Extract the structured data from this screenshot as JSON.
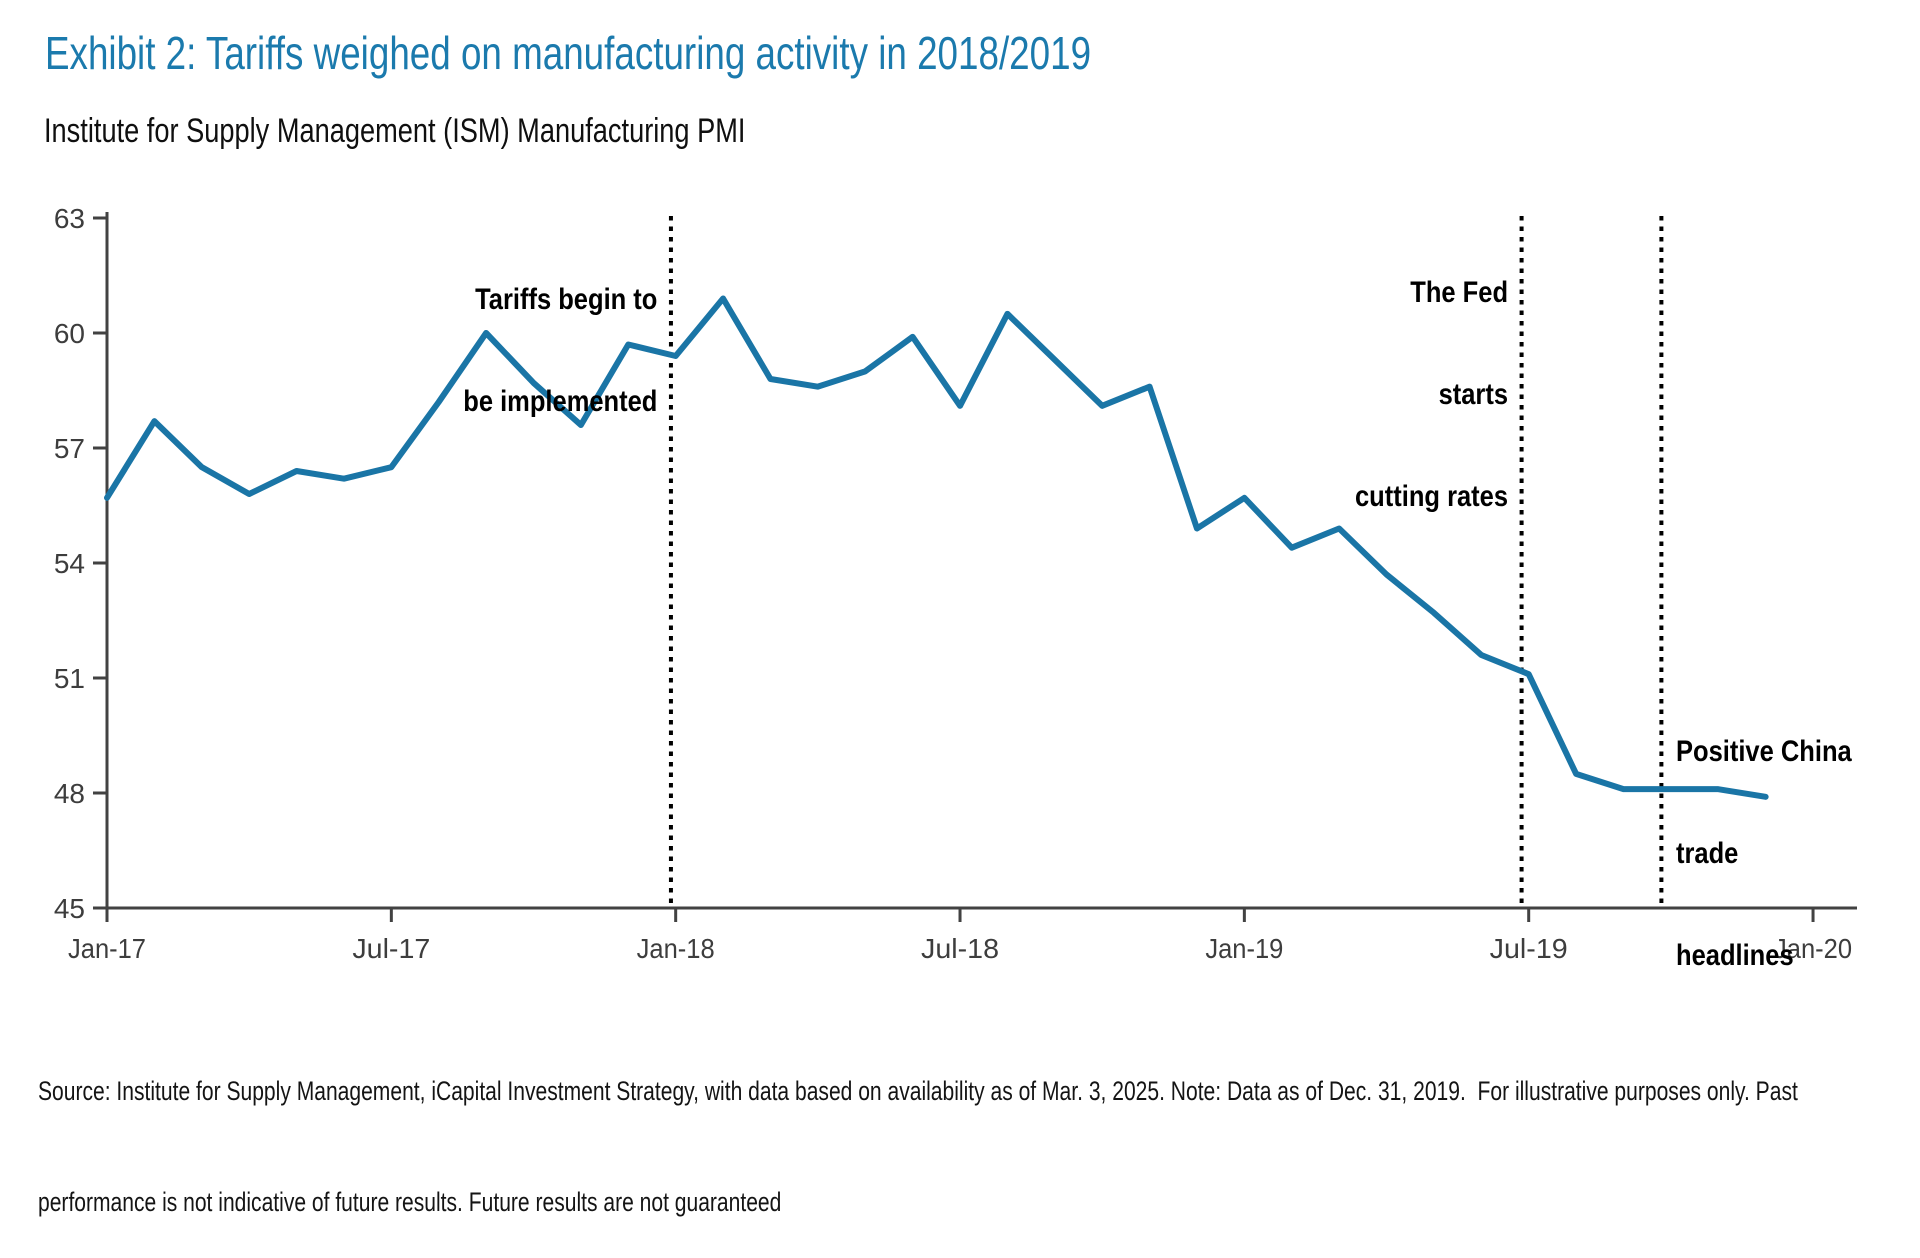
{
  "chart_data": {
    "type": "line",
    "title": "Exhibit 2: Tariffs weighed on manufacturing activity in 2018/2019",
    "subtitle": "Institute for Supply Management (ISM) Manufacturing PMI",
    "x": [
      "Jan-17",
      "Feb-17",
      "Mar-17",
      "Apr-17",
      "May-17",
      "Jun-17",
      "Jul-17",
      "Aug-17",
      "Sep-17",
      "Oct-17",
      "Nov-17",
      "Dec-17",
      "Jan-18",
      "Feb-18",
      "Mar-18",
      "Apr-18",
      "May-18",
      "Jun-18",
      "Jul-18",
      "Aug-18",
      "Sep-18",
      "Oct-18",
      "Nov-18",
      "Dec-18",
      "Jan-19",
      "Feb-19",
      "Mar-19",
      "Apr-19",
      "May-19",
      "Jun-19",
      "Jul-19",
      "Aug-19",
      "Sep-19",
      "Oct-19",
      "Nov-19",
      "Dec-19"
    ],
    "values": [
      55.7,
      57.7,
      56.5,
      55.8,
      56.4,
      56.2,
      56.5,
      58.2,
      60.0,
      58.7,
      57.6,
      59.7,
      59.4,
      60.9,
      58.8,
      58.6,
      59.0,
      59.9,
      58.1,
      60.5,
      59.3,
      58.1,
      58.6,
      54.9,
      55.7,
      54.4,
      54.9,
      53.7,
      52.7,
      51.6,
      51.1,
      48.5,
      48.1,
      48.1,
      48.1,
      47.9
    ],
    "ylim": [
      45,
      63
    ],
    "yticks": [
      63,
      60,
      57,
      54,
      51,
      48,
      45
    ],
    "xticks": [
      {
        "label": "Jan-17",
        "month": 0
      },
      {
        "label": "Jul-17",
        "month": 6
      },
      {
        "label": "Jan-18",
        "month": 12
      },
      {
        "label": "Jul-18",
        "month": 18
      },
      {
        "label": "Jan-19",
        "month": 24
      },
      {
        "label": "Jul-19",
        "month": 30
      },
      {
        "label": "Jan-20",
        "month": 36
      }
    ],
    "grid": false,
    "legend": "none",
    "line_color": "#1a75a6",
    "events": [
      {
        "name": "tariffs",
        "lines": [
          "Tariffs begin to",
          "be implemented"
        ],
        "month": 11.9,
        "label_side": "left"
      },
      {
        "name": "fed-rate-cuts",
        "lines": [
          "The Fed",
          "starts",
          "cutting rates"
        ],
        "month": 29.85,
        "label_side": "left"
      },
      {
        "name": "china-trade",
        "lines": [
          "Positive China",
          "trade",
          "headlines"
        ],
        "month": 32.8,
        "label_side": "right"
      }
    ]
  },
  "footer": {
    "source_lines": [
      "Source: Institute for Supply Management, iCapital Investment Strategy, with data based on availability as of Mar. 3, 2025. Note: Data as of Dec. 31, 2019.  For illustrative purposes only. Past",
      "performance is not indicative of future results. Future results are not guaranteed"
    ]
  },
  "colors": {
    "title_blue": "#1b7aad",
    "line_blue": "#1a75a6",
    "axis_gray": "#424242"
  }
}
